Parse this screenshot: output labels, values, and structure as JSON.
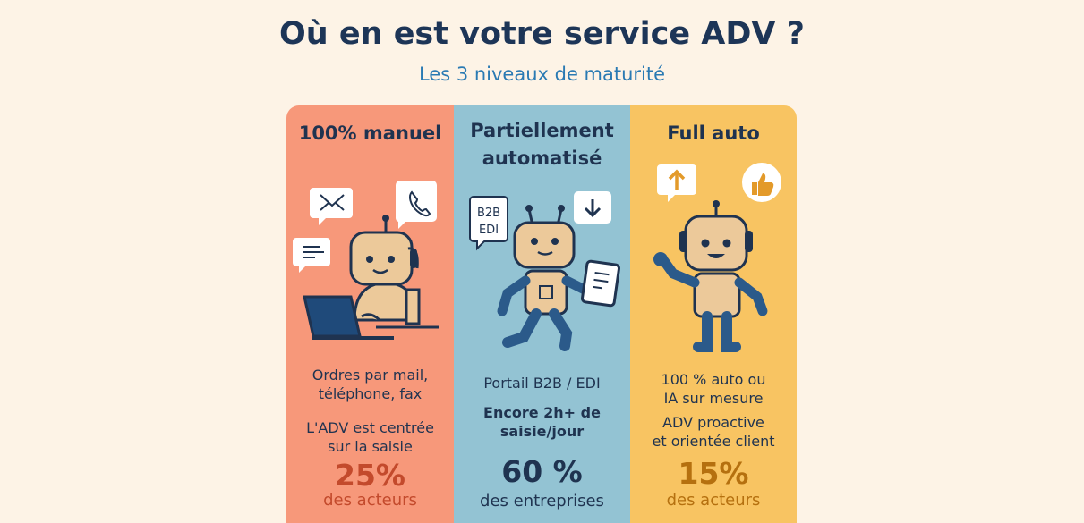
{
  "header": {
    "title": "Où en est votre service ADV ?",
    "subtitle": "Les 3 niveaux de maturité"
  },
  "colors": {
    "manual": "#f7987a",
    "partial": "#93c3d3",
    "full": "#f8c462",
    "navy": "#1d3557",
    "blue": "#2a7ab3"
  },
  "panels": [
    {
      "title": "100% manuel",
      "line1": "Ordres par mail,\ntéléphone, fax",
      "line2": "L'ADV est centrée\nsur la saisie",
      "percent": "25%",
      "who": "des acteurs",
      "icons": [
        "mail-icon",
        "phone-icon",
        "message-icon",
        "laptop-icon",
        "robot-icon"
      ]
    },
    {
      "title": "Partiellement\nautomatisé",
      "badge": "B2B\nEDI",
      "line1": "Portail B2B / EDI",
      "line2": "Encore 2h+ de\nsaisie/jour",
      "percent": "60 %",
      "who": "des entreprises",
      "icons": [
        "down-arrow-icon",
        "tablet-icon",
        "robot-icon"
      ]
    },
    {
      "title": "Full auto",
      "line1": "100 % auto ou\nIA sur mesure",
      "line2": "ADV proactive\net orientée client",
      "percent": "15%",
      "who": "des acteurs",
      "icons": [
        "up-arrow-icon",
        "thumbs-up-icon",
        "robot-icon"
      ]
    }
  ]
}
